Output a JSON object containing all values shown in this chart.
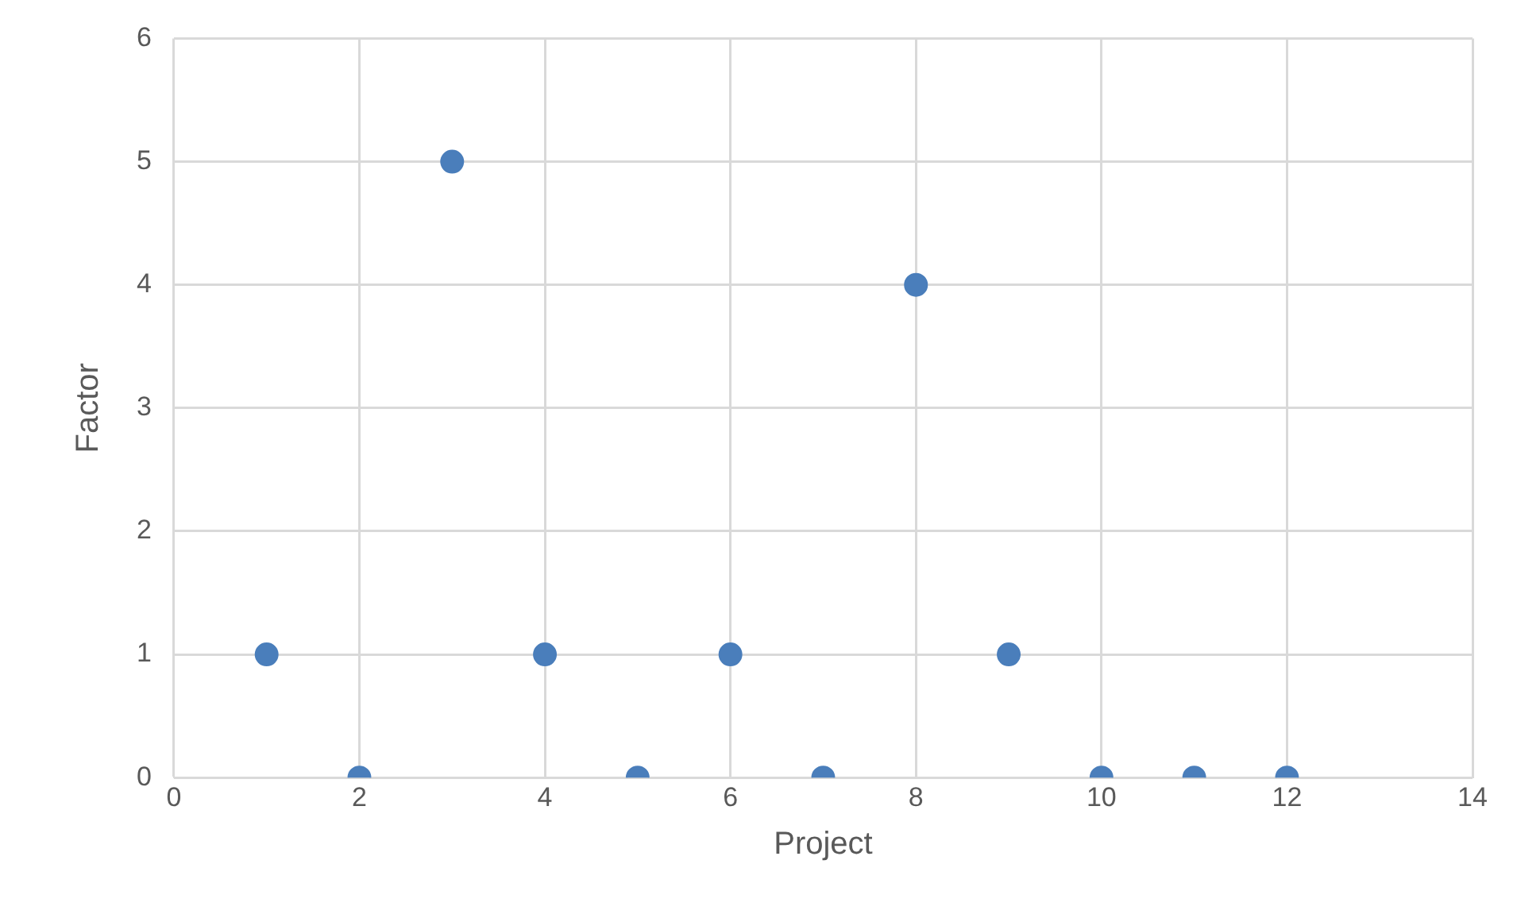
{
  "chart_data": {
    "type": "scatter",
    "xlabel": "Project",
    "ylabel": "Factor",
    "x": [
      1,
      2,
      3,
      4,
      5,
      6,
      7,
      8,
      9,
      10,
      11,
      12
    ],
    "values": [
      1,
      0,
      5,
      1,
      0,
      1,
      0,
      4,
      1,
      0,
      0,
      0
    ],
    "color": "#4a7ebb",
    "marker": "circle",
    "xlim": [
      0,
      14
    ],
    "xticks": [
      0,
      2,
      4,
      6,
      8,
      10,
      12,
      14
    ],
    "ylim": [
      0,
      6
    ],
    "yticks": [
      0,
      1,
      2,
      3,
      4,
      5,
      6
    ],
    "grid": true,
    "legend": false
  }
}
